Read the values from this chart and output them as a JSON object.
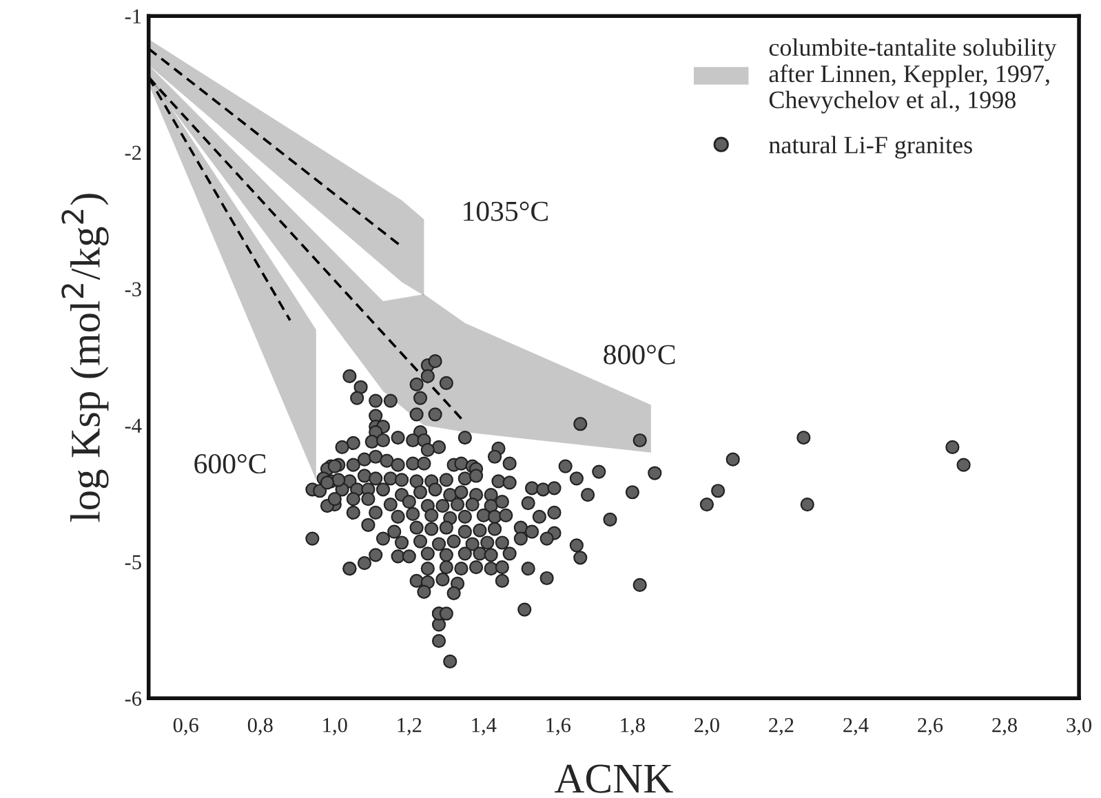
{
  "chart_data": {
    "type": "scatter",
    "xlabel": "ACNK",
    "ylabel": "log Ksp (mol$^{2}$/kg$^{2}$)",
    "xlim": [
      0.5,
      3.0
    ],
    "ylim": [
      -6,
      -1
    ],
    "xticks": [
      {
        "value": 0.6,
        "label": "0,6"
      },
      {
        "value": 0.8,
        "label": "0,8"
      },
      {
        "value": 1.0,
        "label": "1,0"
      },
      {
        "value": 1.2,
        "label": "1,2"
      },
      {
        "value": 1.4,
        "label": "1,4"
      },
      {
        "value": 1.6,
        "label": "1,6"
      },
      {
        "value": 1.8,
        "label": "1,8"
      },
      {
        "value": 2.0,
        "label": "2,0"
      },
      {
        "value": 2.2,
        "label": "2,2"
      },
      {
        "value": 2.4,
        "label": "2,4"
      },
      {
        "value": 2.6,
        "label": "2,6"
      },
      {
        "value": 2.8,
        "label": "2,8"
      },
      {
        "value": 3.0,
        "label": "3,0"
      }
    ],
    "yticks": [
      -6,
      -5,
      -4,
      -3,
      -2,
      -1
    ],
    "grid": false,
    "legend": "top right",
    "annotations": [
      "1035°C",
      "800°C",
      "600°C"
    ],
    "series": [
      {
        "type": "line",
        "name": "columbite-tantalite solubility\nafter Linnen, Keppler, 1997,\nChevychelov et al., 1998",
        "color": "#000000",
        "line_style": "dashed",
        "x": [
          0.5,
          1.18,
          1.24
        ],
        "values": [
          -1.24,
          -2.69,
          null
        ],
        "upper": [
          -1.17,
          -2.35,
          -2.49
        ],
        "lower": [
          -1.36,
          -2.95,
          -3.05
        ]
      },
      {
        "type": "line",
        "color": "#000000",
        "line_style": "dashed",
        "x": [
          0.5,
          1.13,
          1.24,
          1.35,
          1.85
        ],
        "values": [
          -1.45,
          null,
          null,
          -3.98,
          null
        ],
        "upper": [
          -1.36,
          -3.09,
          -3.04,
          -3.25,
          -3.85
        ],
        "lower": [
          -1.45,
          -3.75,
          -4.0,
          -4.05,
          -4.2
        ]
      },
      {
        "type": "line",
        "color": "#000000",
        "line_style": "dashed",
        "x": [
          0.5,
          0.88,
          0.95
        ],
        "values": [
          -1.45,
          -3.23,
          null
        ],
        "upper": [
          -1.42,
          -3.0,
          -3.3
        ],
        "lower": [
          -1.5,
          -3.95,
          -4.4
        ]
      },
      {
        "name": "natural Li-F granites",
        "color": "#606060",
        "marker": "circle",
        "x": [
          1.66,
          1.82,
          1.62,
          1.65,
          1.71,
          1.86,
          1.8,
          1.68,
          1.74,
          1.65,
          1.66,
          1.82,
          2.07,
          2.03,
          2.0,
          2.26,
          2.27,
          2.66,
          2.69,
          1.25,
          1.27,
          1.25,
          1.04,
          1.07,
          1.3,
          1.22,
          1.06,
          1.11,
          1.15,
          1.23,
          1.22,
          1.27,
          1.11,
          1.11,
          1.13,
          1.11,
          1.23,
          1.35,
          1.17,
          1.21,
          1.24,
          1.05,
          1.1,
          1.13,
          1.02,
          1.28,
          1.25,
          1.44,
          1.43,
          0.99,
          1.01,
          1.05,
          1.08,
          1.11,
          1.14,
          1.17,
          1.21,
          1.24,
          1.32,
          1.34,
          1.37,
          1.38,
          1.47,
          1.04,
          1.08,
          1.11,
          1.15,
          1.18,
          1.22,
          1.26,
          1.3,
          1.35,
          1.38,
          1.44,
          1.47,
          1.53,
          1.56,
          1.59,
          1.02,
          1.06,
          1.09,
          1.13,
          1.18,
          1.23,
          1.27,
          1.31,
          1.34,
          1.38,
          1.42,
          1.0,
          1.05,
          1.09,
          1.15,
          1.2,
          1.25,
          1.29,
          1.33,
          1.37,
          1.42,
          1.45,
          1.52,
          1.59,
          1.05,
          1.11,
          1.17,
          1.21,
          1.26,
          1.31,
          1.35,
          1.4,
          1.43,
          1.46,
          1.55,
          1.09,
          1.16,
          1.22,
          1.26,
          1.3,
          1.35,
          1.39,
          1.43,
          1.5,
          1.53,
          1.59,
          1.13,
          1.18,
          1.23,
          1.28,
          1.32,
          1.37,
          1.41,
          1.45,
          1.5,
          1.57,
          1.11,
          1.17,
          1.2,
          1.25,
          1.3,
          1.35,
          1.39,
          1.42,
          1.47,
          1.04,
          1.08,
          1.25,
          1.3,
          1.34,
          1.38,
          1.42,
          1.45,
          1.52,
          1.22,
          1.25,
          1.29,
          1.33,
          1.45,
          1.57,
          1.24,
          1.32,
          1.28,
          1.51,
          0.98,
          1.0,
          0.97,
          0.99,
          1.01,
          0.94,
          0.96,
          0.98,
          0.98,
          1.0,
          0.94,
          1.04,
          1.31,
          1.28,
          1.28,
          1.28,
          1.3
        ],
        "values": [
          -3.99,
          -4.11,
          -4.3,
          -4.39,
          -4.34,
          -4.35,
          -4.49,
          -4.51,
          -4.69,
          -4.88,
          -4.97,
          -5.17,
          -4.25,
          -4.48,
          -4.58,
          -4.09,
          -4.58,
          -4.16,
          -4.29,
          -3.56,
          -3.53,
          -3.64,
          -3.64,
          -3.72,
          -3.69,
          -3.7,
          -3.8,
          -3.82,
          -3.82,
          -3.8,
          -3.92,
          -3.92,
          -3.93,
          -4.01,
          -4.01,
          -4.05,
          -4.05,
          -4.09,
          -4.09,
          -4.11,
          -4.11,
          -4.13,
          -4.12,
          -4.11,
          -4.16,
          -4.16,
          -4.18,
          -4.17,
          -4.23,
          -4.3,
          -4.29,
          -4.29,
          -4.25,
          -4.23,
          -4.26,
          -4.29,
          -4.28,
          -4.28,
          -4.29,
          -4.28,
          -4.3,
          -4.32,
          -4.28,
          -4.41,
          -4.37,
          -4.39,
          -4.39,
          -4.4,
          -4.41,
          -4.41,
          -4.4,
          -4.39,
          -4.37,
          -4.41,
          -4.42,
          -4.46,
          -4.47,
          -4.46,
          -4.47,
          -4.47,
          -4.47,
          -4.47,
          -4.51,
          -4.49,
          -4.47,
          -4.51,
          -4.49,
          -4.51,
          -4.51,
          -4.58,
          -4.54,
          -4.54,
          -4.58,
          -4.56,
          -4.59,
          -4.59,
          -4.58,
          -4.58,
          -4.59,
          -4.56,
          -4.57,
          -4.64,
          -4.64,
          -4.64,
          -4.67,
          -4.65,
          -4.66,
          -4.68,
          -4.67,
          -4.66,
          -4.67,
          -4.66,
          -4.67,
          -4.73,
          -4.78,
          -4.75,
          -4.76,
          -4.75,
          -4.78,
          -4.77,
          -4.76,
          -4.75,
          -4.78,
          -4.79,
          -4.83,
          -4.86,
          -4.85,
          -4.87,
          -4.85,
          -4.87,
          -4.86,
          -4.86,
          -4.83,
          -4.83,
          -4.95,
          -4.96,
          -4.96,
          -4.94,
          -4.95,
          -4.94,
          -4.94,
          -4.95,
          -4.94,
          -5.05,
          -5.01,
          -5.05,
          -5.04,
          -5.05,
          -5.04,
          -5.05,
          -5.04,
          -5.05,
          -5.14,
          -5.15,
          -5.13,
          -5.16,
          -5.14,
          -5.12,
          -5.22,
          -5.23,
          -5.38,
          -5.35,
          -4.32,
          -4.3,
          -4.39,
          -4.41,
          -4.4,
          -4.47,
          -4.48,
          -4.42,
          -4.59,
          -4.54,
          -4.83,
          -5.05,
          -5.73,
          -5.58,
          -5.46,
          -5.38,
          -5.38
        ]
      }
    ]
  }
}
